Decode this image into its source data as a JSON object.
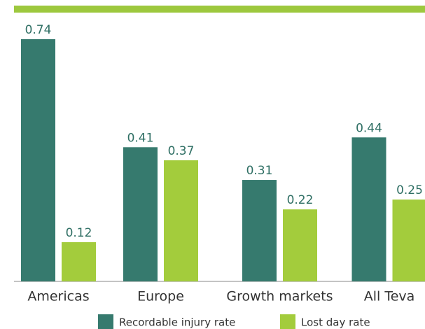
{
  "chart_data": {
    "type": "bar",
    "categories": [
      "Americas",
      "Europe",
      "Growth markets",
      "All Teva"
    ],
    "series": [
      {
        "name": "Recordable injury rate",
        "color": "#367a6e",
        "values": [
          0.74,
          0.41,
          0.31,
          0.44
        ]
      },
      {
        "name": "Lost day rate",
        "color": "#a3cc3c",
        "values": [
          0.12,
          0.37,
          0.22,
          0.25
        ]
      }
    ]
  }
}
